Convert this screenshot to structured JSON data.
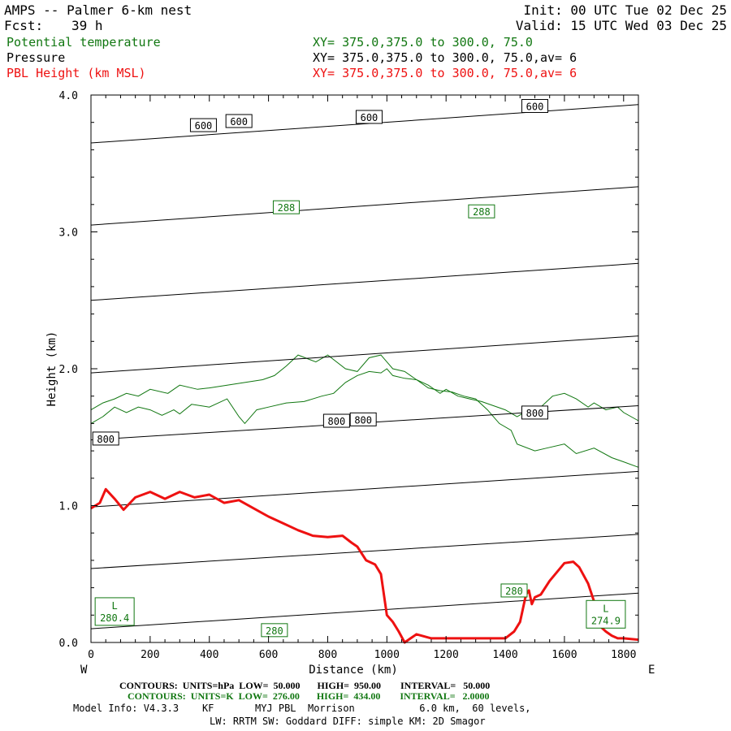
{
  "header": {
    "title": "AMPS -- Palmer 6-km nest",
    "fcst_label": "Fcst:",
    "fcst_value": "39 h",
    "init": "Init: 00 UTC Tue 02 Dec 25",
    "valid": "Valid: 15 UTC Wed 03 Dec 25"
  },
  "fields": [
    {
      "name": "Potential temperature",
      "xy": "XY= 375.0,375.0 to 300.0, 75.0",
      "color": "#117711"
    },
    {
      "name": "Pressure",
      "xy": "XY= 375.0,375.0 to 300.0, 75.0,av=  6",
      "color": "#000000"
    },
    {
      "name": "PBL Height (km MSL)",
      "xy": "XY= 375.0,375.0 to 300.0, 75.0,av=  6",
      "color": "#ee1111"
    }
  ],
  "footer": {
    "line1": "CONTOURS:  UNITS=hPa  LOW=  50.000       HIGH=  950.00        INTERVAL=   50.000",
    "line2": "CONTOURS:  UNITS=K  LOW=  276.00       HIGH=  434.00        INTERVAL=   2.0000",
    "line3": "Model Info: V4.3.3    KF       MYJ PBL  Morrison           6.0 km,  60 levels,",
    "line4": "LW: RRTM SW: Goddard DIFF: simple KM: 2D Smagor"
  },
  "chart_data": {
    "type": "line",
    "xlabel": "Distance (km)",
    "ylabel": "Height (km)",
    "xlim": [
      0,
      1850
    ],
    "ylim": [
      0,
      4.0
    ],
    "x_ticks": [
      0,
      200,
      400,
      600,
      800,
      1000,
      1200,
      1400,
      1600,
      1800
    ],
    "y_ticks": [
      "0.0",
      "1.0",
      "2.0",
      "3.0",
      "4.0"
    ],
    "direction_left": "W",
    "direction_right": "E",
    "colors": {
      "pressure": "#000000",
      "theta": "#117711",
      "pbl": "#ee1111"
    },
    "pbl_height": {
      "x": [
        0,
        30,
        50,
        80,
        110,
        150,
        200,
        250,
        300,
        350,
        400,
        450,
        500,
        550,
        600,
        650,
        700,
        750,
        800,
        850,
        880,
        900,
        930,
        960,
        980,
        1000,
        1020,
        1040,
        1060,
        1080,
        1100,
        1150,
        1200,
        1300,
        1400,
        1430,
        1450,
        1470,
        1480,
        1490,
        1500,
        1520,
        1550,
        1600,
        1630,
        1650,
        1680,
        1700,
        1720,
        1740,
        1760,
        1780,
        1800,
        1850
      ],
      "y": [
        0.98,
        1.02,
        1.12,
        1.05,
        0.97,
        1.06,
        1.1,
        1.05,
        1.1,
        1.06,
        1.08,
        1.02,
        1.04,
        0.98,
        0.92,
        0.87,
        0.82,
        0.78,
        0.77,
        0.78,
        0.73,
        0.7,
        0.6,
        0.57,
        0.5,
        0.2,
        0.15,
        0.08,
        0.0,
        0.03,
        0.06,
        0.03,
        0.03,
        0.03,
        0.03,
        0.08,
        0.15,
        0.35,
        0.38,
        0.28,
        0.33,
        0.35,
        0.45,
        0.58,
        0.59,
        0.55,
        0.43,
        0.3,
        0.12,
        0.08,
        0.05,
        0.03,
        0.03,
        0.02
      ]
    },
    "pressure_contours": [
      {
        "x": [
          0,
          1850
        ],
        "y": [
          3.65,
          3.93
        ]
      },
      {
        "x": [
          0,
          1850
        ],
        "y": [
          3.05,
          3.33
        ]
      },
      {
        "x": [
          0,
          1850
        ],
        "y": [
          2.5,
          2.77
        ]
      },
      {
        "x": [
          0,
          1850
        ],
        "y": [
          1.97,
          2.24
        ]
      },
      {
        "x": [
          0,
          1850
        ],
        "y": [
          1.48,
          1.73
        ]
      },
      {
        "x": [
          0,
          1850
        ],
        "y": [
          0.99,
          1.25
        ]
      },
      {
        "x": [
          0,
          1850
        ],
        "y": [
          0.54,
          0.79
        ]
      },
      {
        "x": [
          0,
          1850
        ],
        "y": [
          0.1,
          0.36
        ]
      }
    ],
    "pressure_labels": [
      {
        "text": "600",
        "x": 380,
        "y": 3.78
      },
      {
        "text": "600",
        "x": 500,
        "y": 3.81
      },
      {
        "text": "600",
        "x": 940,
        "y": 3.84
      },
      {
        "text": "600",
        "x": 1500,
        "y": 3.92
      },
      {
        "text": "800",
        "x": 50,
        "y": 1.49
      },
      {
        "text": "800",
        "x": 830,
        "y": 1.62
      },
      {
        "text": "800",
        "x": 920,
        "y": 1.63
      },
      {
        "text": "800",
        "x": 1500,
        "y": 1.68
      }
    ],
    "theta_contours": [
      {
        "x": [
          0,
          40,
          80,
          120,
          160,
          200,
          240,
          280,
          300,
          340,
          400,
          460,
          500,
          520,
          560,
          600,
          660,
          720,
          780,
          820,
          860,
          900,
          940,
          980,
          1000,
          1020,
          1060,
          1100,
          1140,
          1180,
          1200,
          1240,
          1280,
          1320,
          1360,
          1400,
          1440,
          1480,
          1520,
          1560,
          1600,
          1640,
          1680,
          1700,
          1740,
          1780,
          1800,
          1850
        ],
        "y": [
          1.6,
          1.65,
          1.72,
          1.68,
          1.72,
          1.7,
          1.66,
          1.7,
          1.67,
          1.74,
          1.72,
          1.78,
          1.65,
          1.6,
          1.7,
          1.72,
          1.75,
          1.76,
          1.8,
          1.82,
          1.9,
          1.95,
          1.98,
          1.97,
          2.0,
          1.95,
          1.93,
          1.92,
          1.88,
          1.82,
          1.85,
          1.8,
          1.78,
          1.76,
          1.73,
          1.7,
          1.65,
          1.7,
          1.72,
          1.8,
          1.82,
          1.78,
          1.72,
          1.75,
          1.7,
          1.72,
          1.68,
          1.62
        ]
      },
      {
        "x": [
          0,
          40,
          80,
          120,
          160,
          200,
          260,
          300,
          360,
          400,
          460,
          520,
          580,
          620,
          660,
          700,
          760,
          800,
          860,
          900,
          940,
          980,
          1000,
          1020,
          1060,
          1100,
          1140,
          1180,
          1220,
          1260,
          1300,
          1340,
          1380,
          1420,
          1440,
          1500,
          1540,
          1600,
          1640,
          1700,
          1760,
          1800,
          1850
        ],
        "y": [
          1.7,
          1.75,
          1.78,
          1.82,
          1.8,
          1.85,
          1.82,
          1.88,
          1.85,
          1.86,
          1.88,
          1.9,
          1.92,
          1.95,
          2.02,
          2.1,
          2.05,
          2.1,
          2.0,
          1.98,
          2.08,
          2.1,
          2.05,
          2.0,
          1.98,
          1.92,
          1.86,
          1.84,
          1.83,
          1.8,
          1.78,
          1.7,
          1.6,
          1.55,
          1.45,
          1.4,
          1.42,
          1.45,
          1.38,
          1.42,
          1.35,
          1.32,
          1.28
        ]
      }
    ],
    "theta_contours_extra": [],
    "theta_labels": [
      {
        "text": "288",
        "x": 660,
        "y": 3.18
      },
      {
        "text": "288",
        "x": 1320,
        "y": 3.15
      },
      {
        "text": "280",
        "x": 620,
        "y": 0.09
      },
      {
        "text": "280",
        "x": 1430,
        "y": 0.38
      }
    ],
    "extrema": [
      {
        "letter": "L",
        "value": "280.4",
        "x": 80,
        "y": 0.22
      },
      {
        "letter": "L",
        "value": "274.9",
        "x": 1740,
        "y": 0.2
      }
    ]
  }
}
